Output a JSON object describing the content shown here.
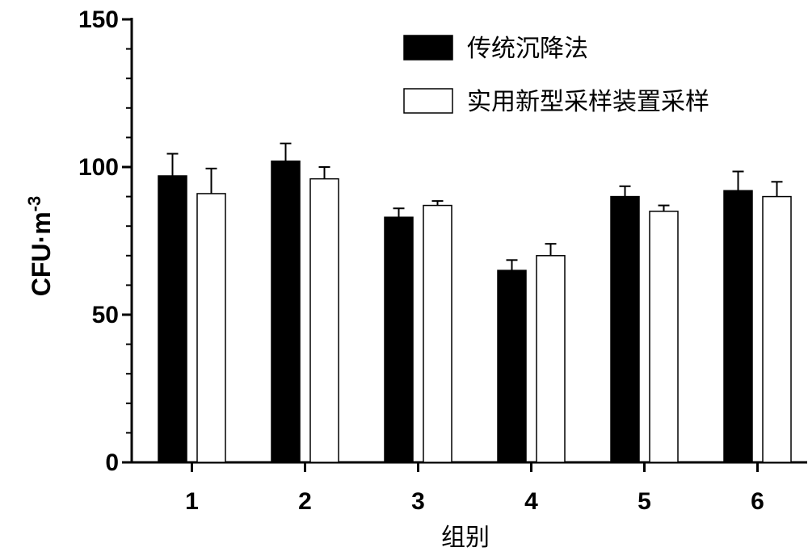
{
  "chart_data": {
    "type": "bar",
    "categories": [
      "1",
      "2",
      "3",
      "4",
      "5",
      "6"
    ],
    "series": [
      {
        "name": "传统沉降法",
        "color": "#000000",
        "values": [
          97,
          102,
          83,
          65,
          90,
          92
        ],
        "errors": [
          7.5,
          6,
          3,
          3.5,
          3.5,
          6.5
        ]
      },
      {
        "name": "实用新型采样装置采样",
        "color": "#ffffff",
        "values": [
          91,
          96,
          87,
          70,
          85,
          90
        ],
        "errors": [
          8.5,
          4,
          1.5,
          4,
          2,
          5
        ]
      }
    ],
    "xlabel": "组别",
    "ylabel": "CFU·m",
    "ylabel_superscript": "-3",
    "ylim": [
      0,
      150
    ],
    "yticks": [
      0,
      50,
      100,
      150
    ],
    "grid": false,
    "legend_position": "top-right"
  }
}
